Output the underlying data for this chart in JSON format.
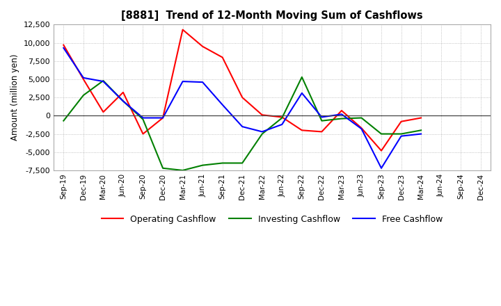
{
  "title": "[8881]  Trend of 12-Month Moving Sum of Cashflows",
  "ylabel": "Amount (million yen)",
  "ylim": [
    -7500,
    12500
  ],
  "yticks": [
    -7500,
    -5000,
    -2500,
    0,
    2500,
    5000,
    7500,
    10000,
    12500
  ],
  "x_labels": [
    "Sep-19",
    "Dec-19",
    "Mar-20",
    "Jun-20",
    "Sep-20",
    "Dec-20",
    "Mar-21",
    "Jun-21",
    "Sep-21",
    "Dec-21",
    "Mar-22",
    "Jun-22",
    "Sep-22",
    "Dec-22",
    "Mar-23",
    "Jun-23",
    "Sep-23",
    "Dec-23",
    "Mar-24",
    "Jun-24",
    "Sep-24",
    "Dec-24"
  ],
  "operating": [
    9700,
    5000,
    500,
    3200,
    -2500,
    -300,
    11800,
    9500,
    8000,
    2500,
    100,
    -200,
    -2000,
    -2200,
    700,
    -1700,
    -4800,
    -800,
    -300,
    null,
    null,
    null
  ],
  "investing": [
    -700,
    2800,
    4800,
    2000,
    -500,
    -7200,
    -7500,
    -6800,
    -6500,
    -6500,
    -2500,
    -300,
    5300,
    -700,
    -400,
    -300,
    -2500,
    -2500,
    -2000,
    null,
    null,
    null
  ],
  "free": [
    9300,
    5200,
    4700,
    2000,
    -300,
    -300,
    4700,
    4600,
    1500,
    -1500,
    -2200,
    -1200,
    3100,
    -200,
    200,
    -1800,
    -7200,
    -2800,
    -2500,
    null,
    null,
    null
  ],
  "operating_color": "#ff0000",
  "investing_color": "#008000",
  "free_color": "#0000ff",
  "bg_color": "#ffffff",
  "plot_bg_color": "#ffffff",
  "grid_color": "#b0b0b0",
  "legend_labels": [
    "Operating Cashflow",
    "Investing Cashflow",
    "Free Cashflow"
  ]
}
